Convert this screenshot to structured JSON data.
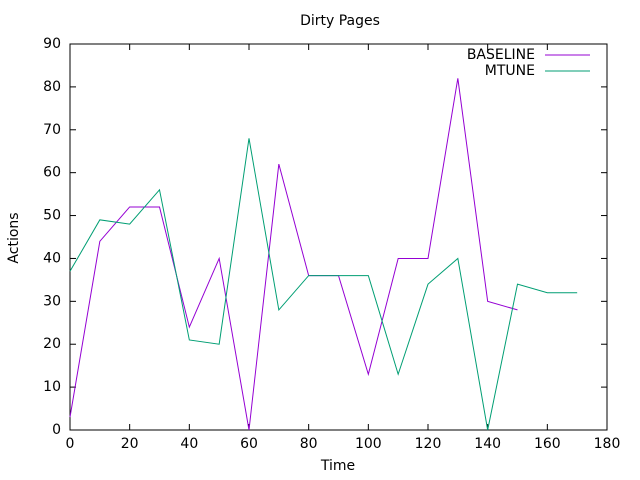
{
  "chart_data": {
    "type": "line",
    "title": "Dirty Pages",
    "x_label": "Time",
    "y_label": "Actions",
    "xlim": [
      0,
      180
    ],
    "xticks": [
      0,
      20,
      40,
      60,
      80,
      100,
      120,
      140,
      160,
      180
    ],
    "ylim": [
      0,
      90
    ],
    "yticks": [
      0,
      10,
      20,
      30,
      40,
      50,
      60,
      70,
      80,
      90
    ],
    "legend": "top-right",
    "series": [
      {
        "name": "BASELINE",
        "color": "#9400d3",
        "x": [
          0,
          10,
          20,
          30,
          40,
          50,
          60,
          70,
          80,
          90,
          100,
          110,
          120,
          130,
          140,
          150
        ],
        "values": [
          3,
          44,
          52,
          52,
          24,
          40,
          0,
          62,
          36,
          36,
          13,
          40,
          40,
          82,
          30,
          28
        ]
      },
      {
        "name": "MTUNE",
        "color": "#009e73",
        "x": [
          0,
          10,
          20,
          30,
          40,
          50,
          60,
          70,
          80,
          90,
          100,
          110,
          120,
          130,
          140,
          150,
          160,
          170
        ],
        "values": [
          37,
          49,
          48,
          56,
          21,
          20,
          68,
          28,
          36,
          36,
          36,
          13,
          34,
          40,
          0,
          34,
          32,
          32
        ]
      }
    ]
  }
}
